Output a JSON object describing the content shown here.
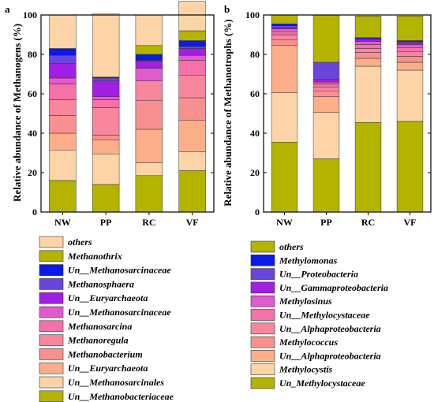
{
  "chart_data": [
    {
      "panel": "a",
      "type": "bar",
      "stacked": true,
      "categories": [
        "NW",
        "PP",
        "RC",
        "VF"
      ],
      "ylabel": "Relative abundance of Methanogens (%)",
      "ylim": [
        0,
        100
      ],
      "yticks": [
        0,
        20,
        40,
        60,
        80,
        100
      ],
      "grid": false,
      "series": [
        {
          "name": "Un__Methanobacteriaceae",
          "color": "#b3b300",
          "values": [
            16,
            14,
            18.5,
            21
          ]
        },
        {
          "name": "Un__Methanosarcinales",
          "color": "#fdd4a8",
          "values": [
            15.5,
            15.5,
            6.5,
            9.5
          ]
        },
        {
          "name": "Un__Euryarchaeota",
          "color": "#fbae88",
          "values": [
            8.5,
            7,
            17,
            16
          ]
        },
        {
          "name": "Methanobacterium",
          "color": "#f99090",
          "values": [
            9,
            2.5,
            14.5,
            11.5
          ]
        },
        {
          "name": "Methanoregula",
          "color": "#f8869c",
          "values": [
            8,
            14,
            10,
            11.5
          ]
        },
        {
          "name": "Methanosarcina",
          "color": "#f571a8",
          "values": [
            8,
            4,
            0,
            7.5
          ]
        },
        {
          "name": "Un__Methanosarcinaceae",
          "color": "#e25ad0",
          "values": [
            3,
            1.5,
            6.5,
            2.5
          ]
        },
        {
          "name": "Un__Euryarchaeota",
          "color": "#a21ee2",
          "values": [
            7.5,
            8,
            3.5,
            3.5
          ]
        },
        {
          "name": "Methanosphaera",
          "color": "#6a45da",
          "values": [
            4,
            1.5,
            0.5,
            1
          ]
        },
        {
          "name": "Un__Methanosarcinaceae",
          "color": "#0a1aea",
          "values": [
            3.5,
            0.5,
            3,
            3
          ]
        },
        {
          "name": "Methanothrix",
          "color": "#b3b300",
          "values": [
            0,
            0,
            4.5,
            5
          ]
        },
        {
          "name": "others",
          "color": "#fdd4a8",
          "values": [
            17,
            32,
            15.5,
            15
          ]
        }
      ]
    },
    {
      "panel": "b",
      "type": "bar",
      "stacked": true,
      "categories": [
        "NW",
        "PP",
        "RC",
        "VF"
      ],
      "ylabel": "Relative abundance of Methanotrophs (%)",
      "ylim": [
        0,
        100
      ],
      "yticks": [
        0,
        20,
        40,
        60,
        80,
        100
      ],
      "grid": false,
      "series": [
        {
          "name": "Un_Methylocystaceae",
          "color": "#b3b300",
          "values": [
            35.5,
            27,
            45.5,
            46
          ]
        },
        {
          "name": "Methylocystis",
          "color": "#fdd4a8",
          "values": [
            25,
            23.5,
            28.5,
            26
          ]
        },
        {
          "name": "Un__Alphaproteobacteria",
          "color": "#fbae88",
          "values": [
            24,
            8,
            4,
            4
          ]
        },
        {
          "name": "Methylococcus",
          "color": "#f99090",
          "values": [
            3,
            3,
            3,
            3
          ]
        },
        {
          "name": "Un__Alphaproteobacteria",
          "color": "#f8869c",
          "values": [
            2.5,
            2,
            2,
            2.5
          ]
        },
        {
          "name": "Un__Methylocystaceae",
          "color": "#f571a8",
          "values": [
            1.5,
            1.5,
            2,
            2
          ]
        },
        {
          "name": "Methylosinus",
          "color": "#e25ad0",
          "values": [
            1.5,
            1,
            1.5,
            1.5
          ]
        },
        {
          "name": "Un__Gammaproteobacteria",
          "color": "#a21ee2",
          "values": [
            0.5,
            1.5,
            1,
            1
          ]
        },
        {
          "name": "Un__Proteobacteria",
          "color": "#6a45da",
          "values": [
            1,
            8.5,
            0.5,
            0.5
          ]
        },
        {
          "name": "Methylomonas",
          "color": "#0a1aea",
          "values": [
            1,
            0,
            0.5,
            0.5
          ]
        },
        {
          "name": "others",
          "color": "#b3b300",
          "values": [
            4.5,
            24,
            11,
            12.5
          ]
        }
      ]
    }
  ],
  "legend_a": [
    {
      "label": "others",
      "color": "#fdd4a8"
    },
    {
      "label": "Methanothrix",
      "color": "#b3b300"
    },
    {
      "label": "Un__Methanosarcinaceae",
      "color": "#0a1aea"
    },
    {
      "label": "Methanosphaera",
      "color": "#6a45da"
    },
    {
      "label": "Un__Euryarchaeota",
      "color": "#a21ee2"
    },
    {
      "label": "Un__Methanosarcinaceae",
      "color": "#e25ad0"
    },
    {
      "label": "Methanosarcina",
      "color": "#f571a8"
    },
    {
      "label": "Methanoregula",
      "color": "#f8869c"
    },
    {
      "label": "Methanobacterium",
      "color": "#f99090"
    },
    {
      "label": "Un__Euryarchaeota",
      "color": "#fbae88"
    },
    {
      "label": "Un__Methanosarcinales",
      "color": "#fdd4a8"
    },
    {
      "label": "Un__Methanobacteriaceae",
      "color": "#b3b300"
    }
  ],
  "legend_b": [
    {
      "label": "others",
      "color": "#b3b300"
    },
    {
      "label": "Methylomonas",
      "color": "#0a1aea"
    },
    {
      "label": "Un__Proteobacteria",
      "color": "#6a45da"
    },
    {
      "label": "Un__Gammaproteobacteria",
      "color": "#a21ee2"
    },
    {
      "label": "Methylosinus",
      "color": "#e25ad0"
    },
    {
      "label": "Un__Methylocystaceae",
      "color": "#f571a8"
    },
    {
      "label": "Un__Alphaproteobacteria",
      "color": "#f8869c"
    },
    {
      "label": "Methylococcus",
      "color": "#f99090"
    },
    {
      "label": "Un__Alphaproteobacteria",
      "color": "#fbae88"
    },
    {
      "label": "Methylocystis",
      "color": "#fdd4a8"
    },
    {
      "label": "Un_Methylocystaceae",
      "color": "#b3b300"
    }
  ]
}
